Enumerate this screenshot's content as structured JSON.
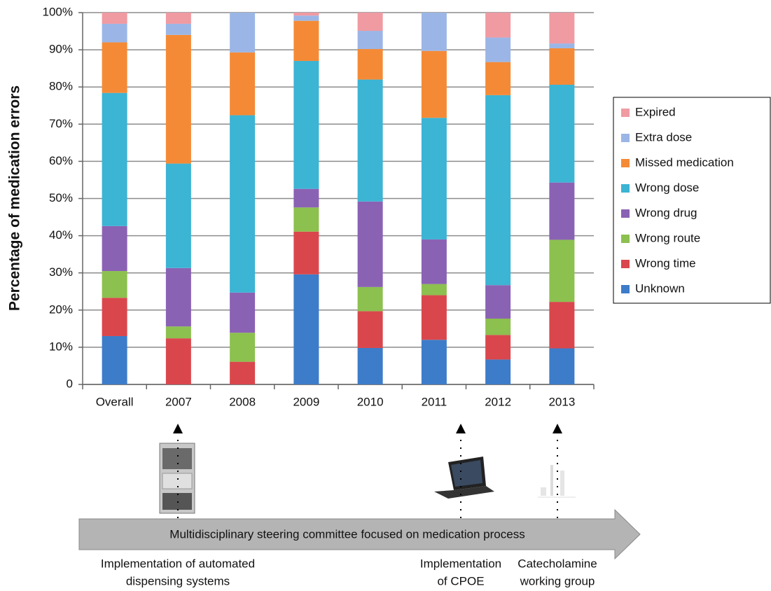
{
  "chart_data": {
    "type": "stacked_bar",
    "y_label": "Percentage of medication errors",
    "categories": [
      "Overall",
      "2007",
      "2008",
      "2009",
      "2010",
      "2011",
      "2012",
      "2013"
    ],
    "series": [
      {
        "name": "Unknown",
        "color": "#3d7cc9",
        "values": [
          13,
          0,
          0,
          29.6,
          9.8,
          12,
          6.7,
          9.7
        ]
      },
      {
        "name": "Wrong time",
        "color": "#d9474d",
        "values": [
          10.3,
          12.4,
          6.1,
          11.5,
          9.9,
          12,
          6.6,
          12.5
        ]
      },
      {
        "name": "Wrong route",
        "color": "#8cc04f",
        "values": [
          7.2,
          3.2,
          7.8,
          6.5,
          6.5,
          3,
          4.4,
          16.7
        ]
      },
      {
        "name": "Wrong drug",
        "color": "#8a62b4",
        "values": [
          12.1,
          15.7,
          10.8,
          5,
          23,
          12,
          9,
          15.4
        ]
      },
      {
        "name": "Wrong dose",
        "color": "#3cb4d4",
        "values": [
          35.8,
          28.1,
          47.7,
          34.4,
          32.8,
          32.7,
          51.1,
          26.3
        ]
      },
      {
        "name": "Missed medication",
        "color": "#f58a36",
        "values": [
          13.6,
          34.6,
          16.9,
          10.8,
          8.2,
          18,
          8.9,
          9.8
        ]
      },
      {
        "name": "Extra dose",
        "color": "#9bb6e6",
        "values": [
          5,
          3,
          10.7,
          1.4,
          4.9,
          10.3,
          6.6,
          1.3
        ]
      },
      {
        "name": "Expired",
        "color": "#f09aa2",
        "values": [
          3,
          3,
          0,
          0.8,
          4.9,
          0,
          6.7,
          8.3
        ]
      }
    ],
    "ylim": [
      0,
      100
    ],
    "yticks": [
      0,
      {
        "value": 10,
        "label": "10%"
      },
      {
        "value": 20,
        "label": "20%"
      },
      {
        "value": 30,
        "label": "30%"
      },
      {
        "value": 40,
        "label": "40%"
      },
      {
        "value": 50,
        "label": "50%"
      },
      {
        "value": 60,
        "label": "60%"
      },
      {
        "value": 70,
        "label": "70%"
      },
      {
        "value": 80,
        "label": "80%"
      },
      {
        "value": 90,
        "label": "90%"
      },
      {
        "value": 100,
        "label": "100%"
      }
    ],
    "grid": true,
    "legend": "right",
    "timeline": "Multidisciplinary steering committee focused on medication process",
    "events": [
      [
        "Implementation of automated",
        "dispensing systems"
      ],
      [
        "Implementation",
        "of CPOE"
      ],
      [
        "Catecholamine",
        "working group"
      ]
    ]
  }
}
